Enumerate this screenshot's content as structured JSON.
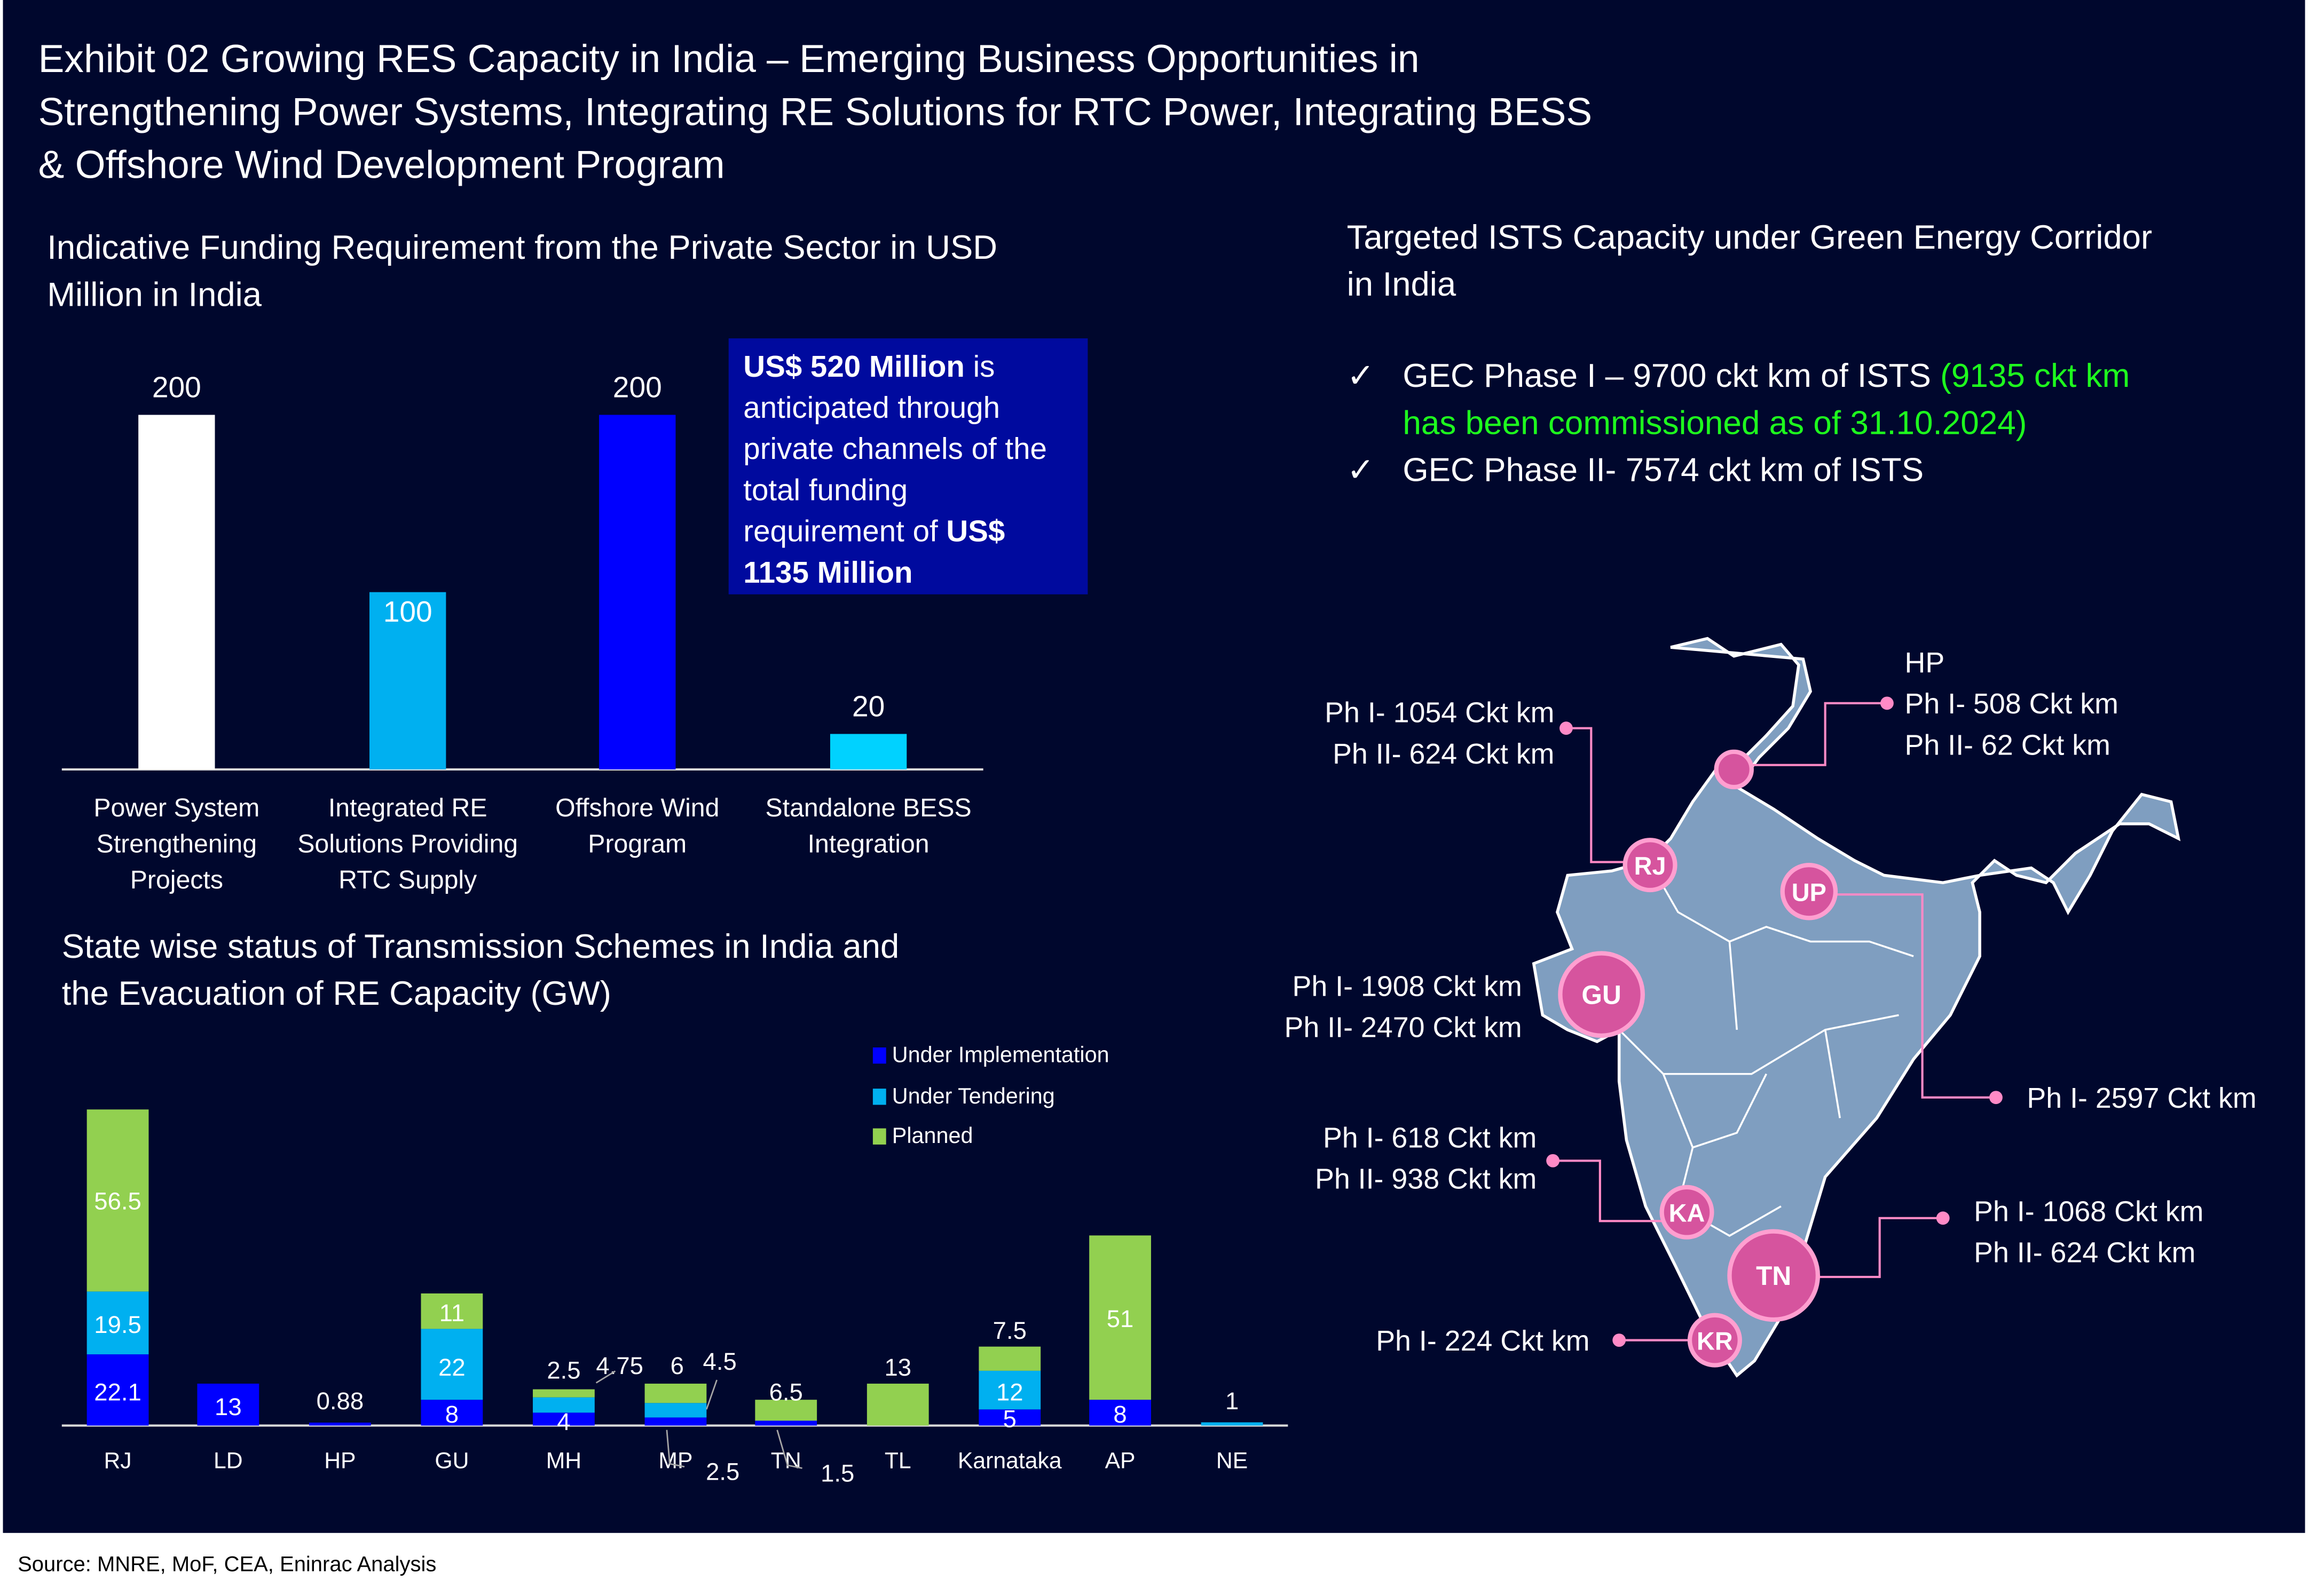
{
  "title_lines": [
    "Exhibit 02 Growing RES Capacity in India – Emerging Business Opportunities in",
    "Strengthening Power Systems, Integrating RE Solutions for RTC Power, Integrating BESS",
    "& Offshore Wind Development Program"
  ],
  "source": "Source: MNRE, MoF, CEA, Eninrac Analysis",
  "note": {
    "bold1": "US$ 520 Million",
    "text1": " is anticipated through private channels of the total funding requirement of ",
    "bold2": "US$ 1135 Million"
  },
  "gec": {
    "title_lines": [
      "Targeted ISTS Capacity under Green Energy Corridor",
      "in India"
    ],
    "check": "✓",
    "phase1": "GEC Phase I – 9700 ckt km of ISTS ",
    "phase1_green_a": "(9135 ckt km",
    "phase1_green_b": "has been commissioned as of 31.10.2024)",
    "phase2": "GEC Phase II-  7574 ckt km of ISTS"
  },
  "map": {
    "fill_color": "#7f9ec0",
    "marker_color": "#d6549e",
    "states": [
      {
        "code": "HP",
        "lines": [
          "HP",
          "Ph I- 508 Ckt km",
          "Ph II- 62 Ckt km"
        ]
      },
      {
        "code": "RJ",
        "lines": [
          "Ph I- 1054 Ckt km",
          "Ph II- 624 Ckt km"
        ]
      },
      {
        "code": "UP",
        "lines": [
          "Ph I- 2597 Ckt km"
        ]
      },
      {
        "code": "GU",
        "lines": [
          "Ph I- 1908 Ckt km",
          "Ph II- 2470 Ckt km"
        ]
      },
      {
        "code": "KA",
        "lines": [
          "Ph I- 618 Ckt km",
          "Ph II- 938 Ckt km"
        ]
      },
      {
        "code": "TN",
        "lines": [
          "Ph I- 1068 Ckt km",
          "Ph II- 624 Ckt km"
        ]
      },
      {
        "code": "KR",
        "lines": [
          "Ph I- 224 Ckt km"
        ]
      }
    ]
  },
  "chart_data": [
    {
      "type": "bar",
      "title_lines": [
        "Indicative Funding Requirement from the Private Sector in USD",
        "Million in India"
      ],
      "categories": [
        [
          "Power System",
          "Strengthening",
          "Projects"
        ],
        [
          "Integrated RE",
          "Solutions Providing",
          "RTC Supply"
        ],
        [
          "Offshore Wind",
          "Program"
        ],
        [
          "Standalone BESS",
          "Integration"
        ]
      ],
      "values": [
        200,
        100,
        200,
        20
      ],
      "colors": [
        "#ffffff",
        "#00b0f0",
        "#0000ff",
        "#00d2ff"
      ],
      "ylim": [
        0,
        200
      ],
      "grid": false
    },
    {
      "type": "bar",
      "stacked": true,
      "title_lines": [
        "State wise status of Transmission Schemes in India and",
        "the Evacuation of RE Capacity (GW)"
      ],
      "categories": [
        "RJ",
        "LD",
        "HP",
        "GU",
        "MH",
        "MP",
        "TN",
        "TL",
        "Karnataka",
        "AP",
        "NE"
      ],
      "series": [
        {
          "name": "Under Implementation",
          "color": "#0000ff",
          "values": [
            22.1,
            13,
            0.88,
            8,
            4,
            2.5,
            1.5,
            0,
            5,
            8,
            0
          ]
        },
        {
          "name": "Under Tendering",
          "color": "#00b0f0",
          "values": [
            19.5,
            0,
            0,
            22,
            4.75,
            4.5,
            0,
            0,
            12,
            0,
            1
          ]
        },
        {
          "name": "Planned",
          "color": "#92d050",
          "values": [
            56.5,
            0,
            0,
            11,
            2.5,
            6,
            6.5,
            13,
            7.5,
            51,
            0
          ]
        }
      ],
      "legend": "top-right",
      "grid": false
    }
  ]
}
